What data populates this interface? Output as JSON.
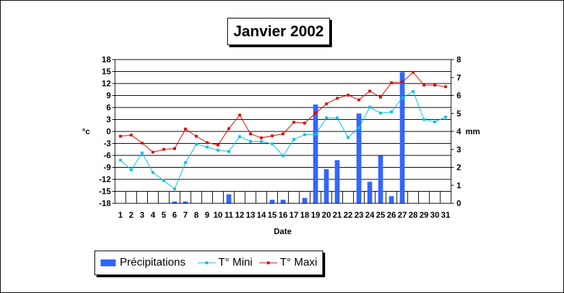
{
  "chart_data": {
    "type": "bar+line",
    "title": "Janvier 2002",
    "xlabel": "Date",
    "ylabel_left": "°c",
    "ylabel_right": "mm",
    "x": [
      1,
      2,
      3,
      4,
      5,
      6,
      7,
      8,
      9,
      10,
      11,
      12,
      13,
      14,
      15,
      16,
      17,
      18,
      19,
      20,
      21,
      22,
      23,
      24,
      25,
      26,
      27,
      28,
      29,
      30,
      31
    ],
    "ylim_left": [
      -18,
      18
    ],
    "yticks_left": [
      -18,
      -15,
      -12,
      -9,
      -6,
      -3,
      0,
      3,
      6,
      9,
      12,
      15,
      18
    ],
    "ylim_right": [
      0,
      8
    ],
    "yticks_right": [
      0,
      1,
      2,
      3,
      4,
      5,
      6,
      7,
      8
    ],
    "grid": "horizontal",
    "legend_position": "bottom-left",
    "series": [
      {
        "name": "Précipitations",
        "kind": "bar",
        "axis": "right",
        "color": "#3366ff",
        "values": [
          0,
          0,
          0,
          0,
          0,
          0.1,
          0.1,
          0,
          0,
          0,
          0.5,
          0,
          0,
          0,
          0.2,
          0.2,
          0,
          0.3,
          5.5,
          1.9,
          2.4,
          0,
          5.0,
          1.2,
          2.65,
          0.4,
          7.3,
          0,
          0,
          0,
          0
        ]
      },
      {
        "name": "T° Mini",
        "kind": "line",
        "axis": "left",
        "color": "#00c0e0",
        "values": [
          -7.2,
          -9.6,
          -5.4,
          -10.3,
          -12.3,
          -14.4,
          -7.8,
          -3.2,
          -3.9,
          -4.7,
          -5.0,
          -1.3,
          -2.5,
          -2.5,
          -3.1,
          -6.1,
          -2.0,
          -0.8,
          -0.7,
          3.4,
          3.4,
          -1.5,
          0.9,
          6.1,
          4.6,
          4.9,
          8.4,
          10.0,
          3.0,
          2.4,
          3.6
        ]
      },
      {
        "name": "T° Maxi",
        "kind": "line",
        "axis": "left",
        "color": "#dd0000",
        "values": [
          -1.2,
          -0.9,
          -2.9,
          -5.2,
          -4.5,
          -4.3,
          0.6,
          -1.2,
          -2.8,
          -3.4,
          0.7,
          4.1,
          -0.6,
          -1.6,
          -1.1,
          -0.6,
          2.3,
          2.1,
          4.6,
          6.9,
          8.3,
          9.1,
          7.9,
          10.1,
          8.6,
          12.2,
          12.4,
          14.8,
          11.6,
          11.6,
          11.2
        ]
      }
    ]
  }
}
